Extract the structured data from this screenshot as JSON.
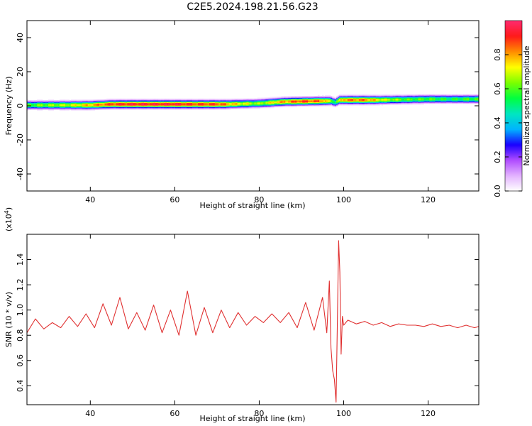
{
  "title": "C2E5.2024.198.21.56.G23",
  "chart_data": [
    {
      "type": "heatmap",
      "xlabel": "Height of straight line (km)",
      "ylabel": "Frequency (Hz)",
      "xlim": [
        25,
        132
      ],
      "ylim": [
        -50,
        50
      ],
      "xticks": [
        40,
        60,
        80,
        100,
        120
      ],
      "yticks": [
        -40,
        -20,
        0,
        20,
        40
      ],
      "colorbar": {
        "label": "Normalized spectral amplitude",
        "range": [
          0,
          1
        ],
        "ticks": [
          0.0,
          0.2,
          0.4,
          0.6,
          0.8
        ],
        "colors": [
          "#ffffff",
          "#e3b3ff",
          "#b04cff",
          "#1a00ff",
          "#00b4ff",
          "#00e6c0",
          "#00ff40",
          "#7bff00",
          "#ffff00",
          "#ff8c00",
          "#ff1a1a",
          "#ff2a6e"
        ]
      },
      "ridge": [
        {
          "x": 25,
          "f": 0.5
        },
        {
          "x": 40,
          "f": 0.5
        },
        {
          "x": 45,
          "f": 1
        },
        {
          "x": 60,
          "f": 1
        },
        {
          "x": 72,
          "f": 1
        },
        {
          "x": 80,
          "f": 1.5
        },
        {
          "x": 86,
          "f": 2.5
        },
        {
          "x": 97,
          "f": 3
        },
        {
          "x": 98,
          "f": 2
        },
        {
          "x": 99,
          "f": 3.5
        },
        {
          "x": 108,
          "f": 3.5
        },
        {
          "x": 120,
          "f": 4
        },
        {
          "x": 132,
          "f": 4
        }
      ],
      "peak_amplitude": [
        {
          "x": 25,
          "a": 0.6
        },
        {
          "x": 30,
          "a": 0.65
        },
        {
          "x": 35,
          "a": 0.7
        },
        {
          "x": 40,
          "a": 0.8
        },
        {
          "x": 45,
          "a": 0.9
        },
        {
          "x": 50,
          "a": 0.95
        },
        {
          "x": 55,
          "a": 0.95
        },
        {
          "x": 60,
          "a": 0.95
        },
        {
          "x": 65,
          "a": 0.9
        },
        {
          "x": 70,
          "a": 0.9
        },
        {
          "x": 75,
          "a": 0.75
        },
        {
          "x": 80,
          "a": 0.65
        },
        {
          "x": 85,
          "a": 0.8
        },
        {
          "x": 90,
          "a": 0.9
        },
        {
          "x": 95,
          "a": 0.85
        },
        {
          "x": 98,
          "a": 0.55
        },
        {
          "x": 100,
          "a": 0.85
        },
        {
          "x": 105,
          "a": 0.85
        },
        {
          "x": 110,
          "a": 0.7
        },
        {
          "x": 115,
          "a": 0.6
        },
        {
          "x": 120,
          "a": 0.6
        },
        {
          "x": 125,
          "a": 0.55
        },
        {
          "x": 132,
          "a": 0.6
        }
      ]
    },
    {
      "type": "line",
      "ylabel": "SNR (10 * v/v)",
      "scale_label": "(x10",
      "scale_exponent": "4",
      "scale_close": ")",
      "xlabel": "Height of straight line (km)",
      "xlim": [
        25,
        132
      ],
      "ylim": [
        0.25,
        1.6
      ],
      "xticks": [
        40,
        60,
        80,
        100,
        120
      ],
      "yticks": [
        0.4,
        0.6,
        0.8,
        1.0,
        1.2,
        1.4
      ],
      "series": [
        {
          "color": "#e03030",
          "x": [
            25,
            27,
            29,
            31,
            33,
            35,
            37,
            39,
            41,
            43,
            45,
            47,
            49,
            51,
            53,
            55,
            57,
            59,
            61,
            63,
            65,
            67,
            69,
            71,
            73,
            75,
            77,
            79,
            81,
            83,
            85,
            87,
            89,
            91,
            93,
            95,
            96,
            96.6,
            97,
            97.4,
            97.8,
            98.2,
            98.5,
            98.8,
            99.1,
            99.4,
            99.7,
            100,
            101,
            103,
            105,
            107,
            109,
            111,
            113,
            115,
            117,
            119,
            121,
            123,
            125,
            127,
            129,
            131,
            132
          ],
          "y": [
            0.82,
            0.93,
            0.85,
            0.9,
            0.86,
            0.95,
            0.87,
            0.97,
            0.86,
            1.05,
            0.88,
            1.1,
            0.85,
            0.98,
            0.84,
            1.04,
            0.82,
            1.0,
            0.8,
            1.15,
            0.8,
            1.02,
            0.82,
            1.0,
            0.86,
            0.98,
            0.88,
            0.95,
            0.9,
            0.97,
            0.9,
            0.98,
            0.86,
            1.06,
            0.84,
            1.1,
            0.82,
            1.23,
            0.7,
            0.52,
            0.45,
            0.27,
            0.9,
            1.55,
            1.3,
            0.65,
            0.95,
            0.88,
            0.92,
            0.89,
            0.91,
            0.88,
            0.9,
            0.87,
            0.89,
            0.88,
            0.88,
            0.87,
            0.89,
            0.87,
            0.88,
            0.86,
            0.88,
            0.86,
            0.87
          ]
        }
      ]
    }
  ]
}
